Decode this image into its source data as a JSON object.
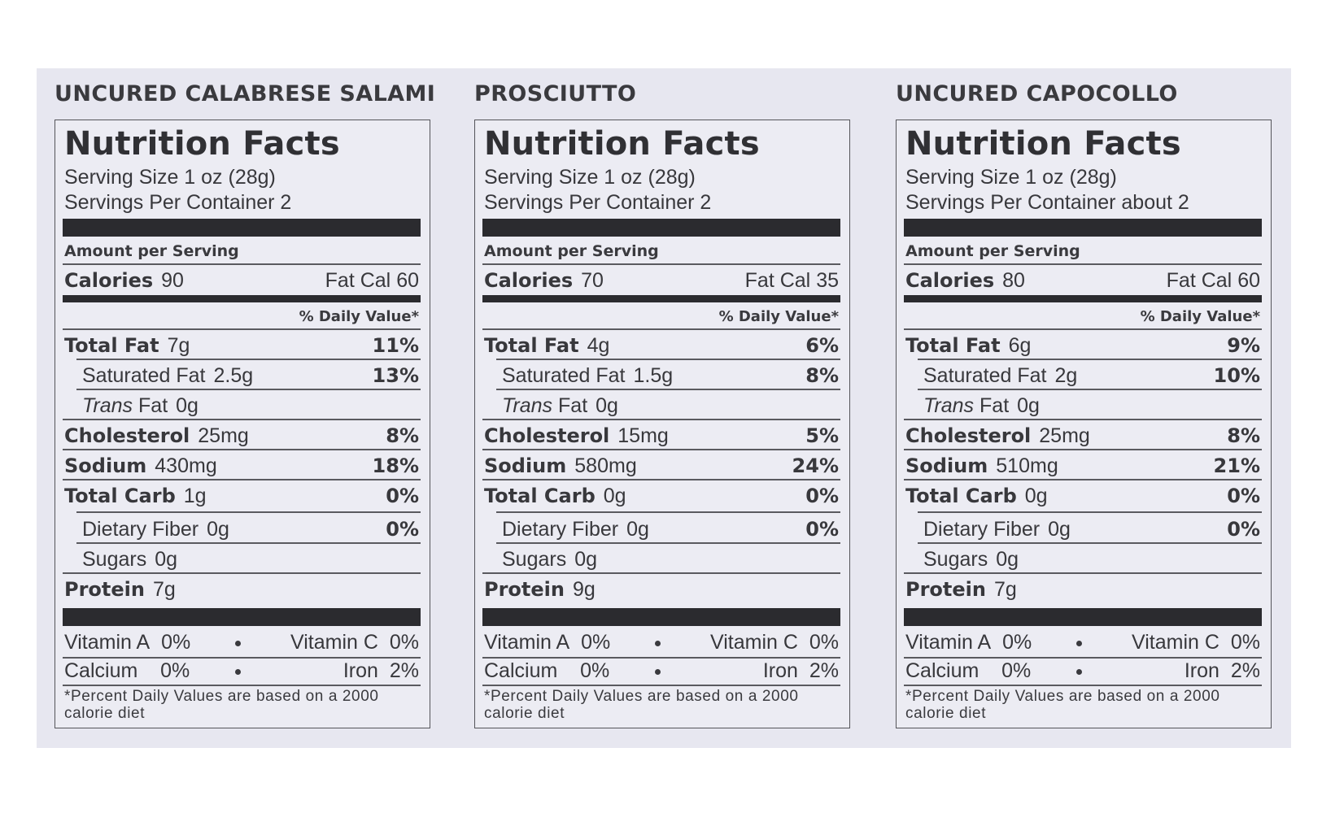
{
  "nf_title": "Nutrition Facts",
  "amount_per_serving": "Amount per Serving",
  "daily_value_header": "% Daily Value*",
  "labels": {
    "calories": "Calories",
    "fat_cal": "Fat Cal",
    "total_fat": "Total Fat",
    "saturated_fat": "Saturated Fat",
    "trans_prefix": "Trans",
    "trans_suffix": "Fat",
    "cholesterol": "Cholesterol",
    "sodium": "Sodium",
    "total_carb": "Total Carb",
    "dietary_fiber": "Dietary Fiber",
    "sugars": "Sugars",
    "protein": "Protein",
    "vitamin_a": "Vitamin A",
    "vitamin_c": "Vitamin C",
    "calcium": "Calcium",
    "iron": "Iron"
  },
  "footnote": "*Percent Daily Values are based on a 2000 calorie diet",
  "products": [
    {
      "name": "UNCURED CALABRESE SALAMI",
      "serving_size": "Serving Size 1 oz (28g)",
      "servings_per_container": "Servings Per Container 2",
      "calories": "90",
      "fat_cal": "60",
      "total_fat": "7g",
      "total_fat_dv": "11%",
      "saturated_fat": "2.5g",
      "saturated_fat_dv": "13%",
      "trans_fat": "0g",
      "cholesterol": "25mg",
      "cholesterol_dv": "8%",
      "sodium": "430mg",
      "sodium_dv": "18%",
      "total_carb": "1g",
      "total_carb_dv": "0%",
      "dietary_fiber": "0g",
      "dietary_fiber_dv": "0%",
      "sugars": "0g",
      "protein": "7g",
      "vitamin_a": "0%",
      "vitamin_c": "0%",
      "calcium": "0%",
      "iron": "2%"
    },
    {
      "name": "PROSCIUTTO",
      "serving_size": "Serving Size 1 oz (28g)",
      "servings_per_container": "Servings Per Container 2",
      "calories": "70",
      "fat_cal": "35",
      "total_fat": "4g",
      "total_fat_dv": "6%",
      "saturated_fat": "1.5g",
      "saturated_fat_dv": "8%",
      "trans_fat": "0g",
      "cholesterol": "15mg",
      "cholesterol_dv": "5%",
      "sodium": "580mg",
      "sodium_dv": "24%",
      "total_carb": "0g",
      "total_carb_dv": "0%",
      "dietary_fiber": "0g",
      "dietary_fiber_dv": "0%",
      "sugars": "0g",
      "protein": "9g",
      "vitamin_a": "0%",
      "vitamin_c": "0%",
      "calcium": "0%",
      "iron": "2%"
    },
    {
      "name": "UNCURED CAPOCOLLO",
      "serving_size": "Serving Size 1 oz (28g)",
      "servings_per_container": "Servings Per Container about 2",
      "calories": "80",
      "fat_cal": "60",
      "total_fat": "6g",
      "total_fat_dv": "9%",
      "saturated_fat": "2g",
      "saturated_fat_dv": "10%",
      "trans_fat": "0g",
      "cholesterol": "25mg",
      "cholesterol_dv": "8%",
      "sodium": "510mg",
      "sodium_dv": "21%",
      "total_carb": "0g",
      "total_carb_dv": "0%",
      "dietary_fiber": "0g",
      "dietary_fiber_dv": "0%",
      "sugars": "0g",
      "protein": "7g",
      "vitamin_a": "0%",
      "vitamin_c": "0%",
      "calcium": "0%",
      "iron": "2%"
    }
  ]
}
